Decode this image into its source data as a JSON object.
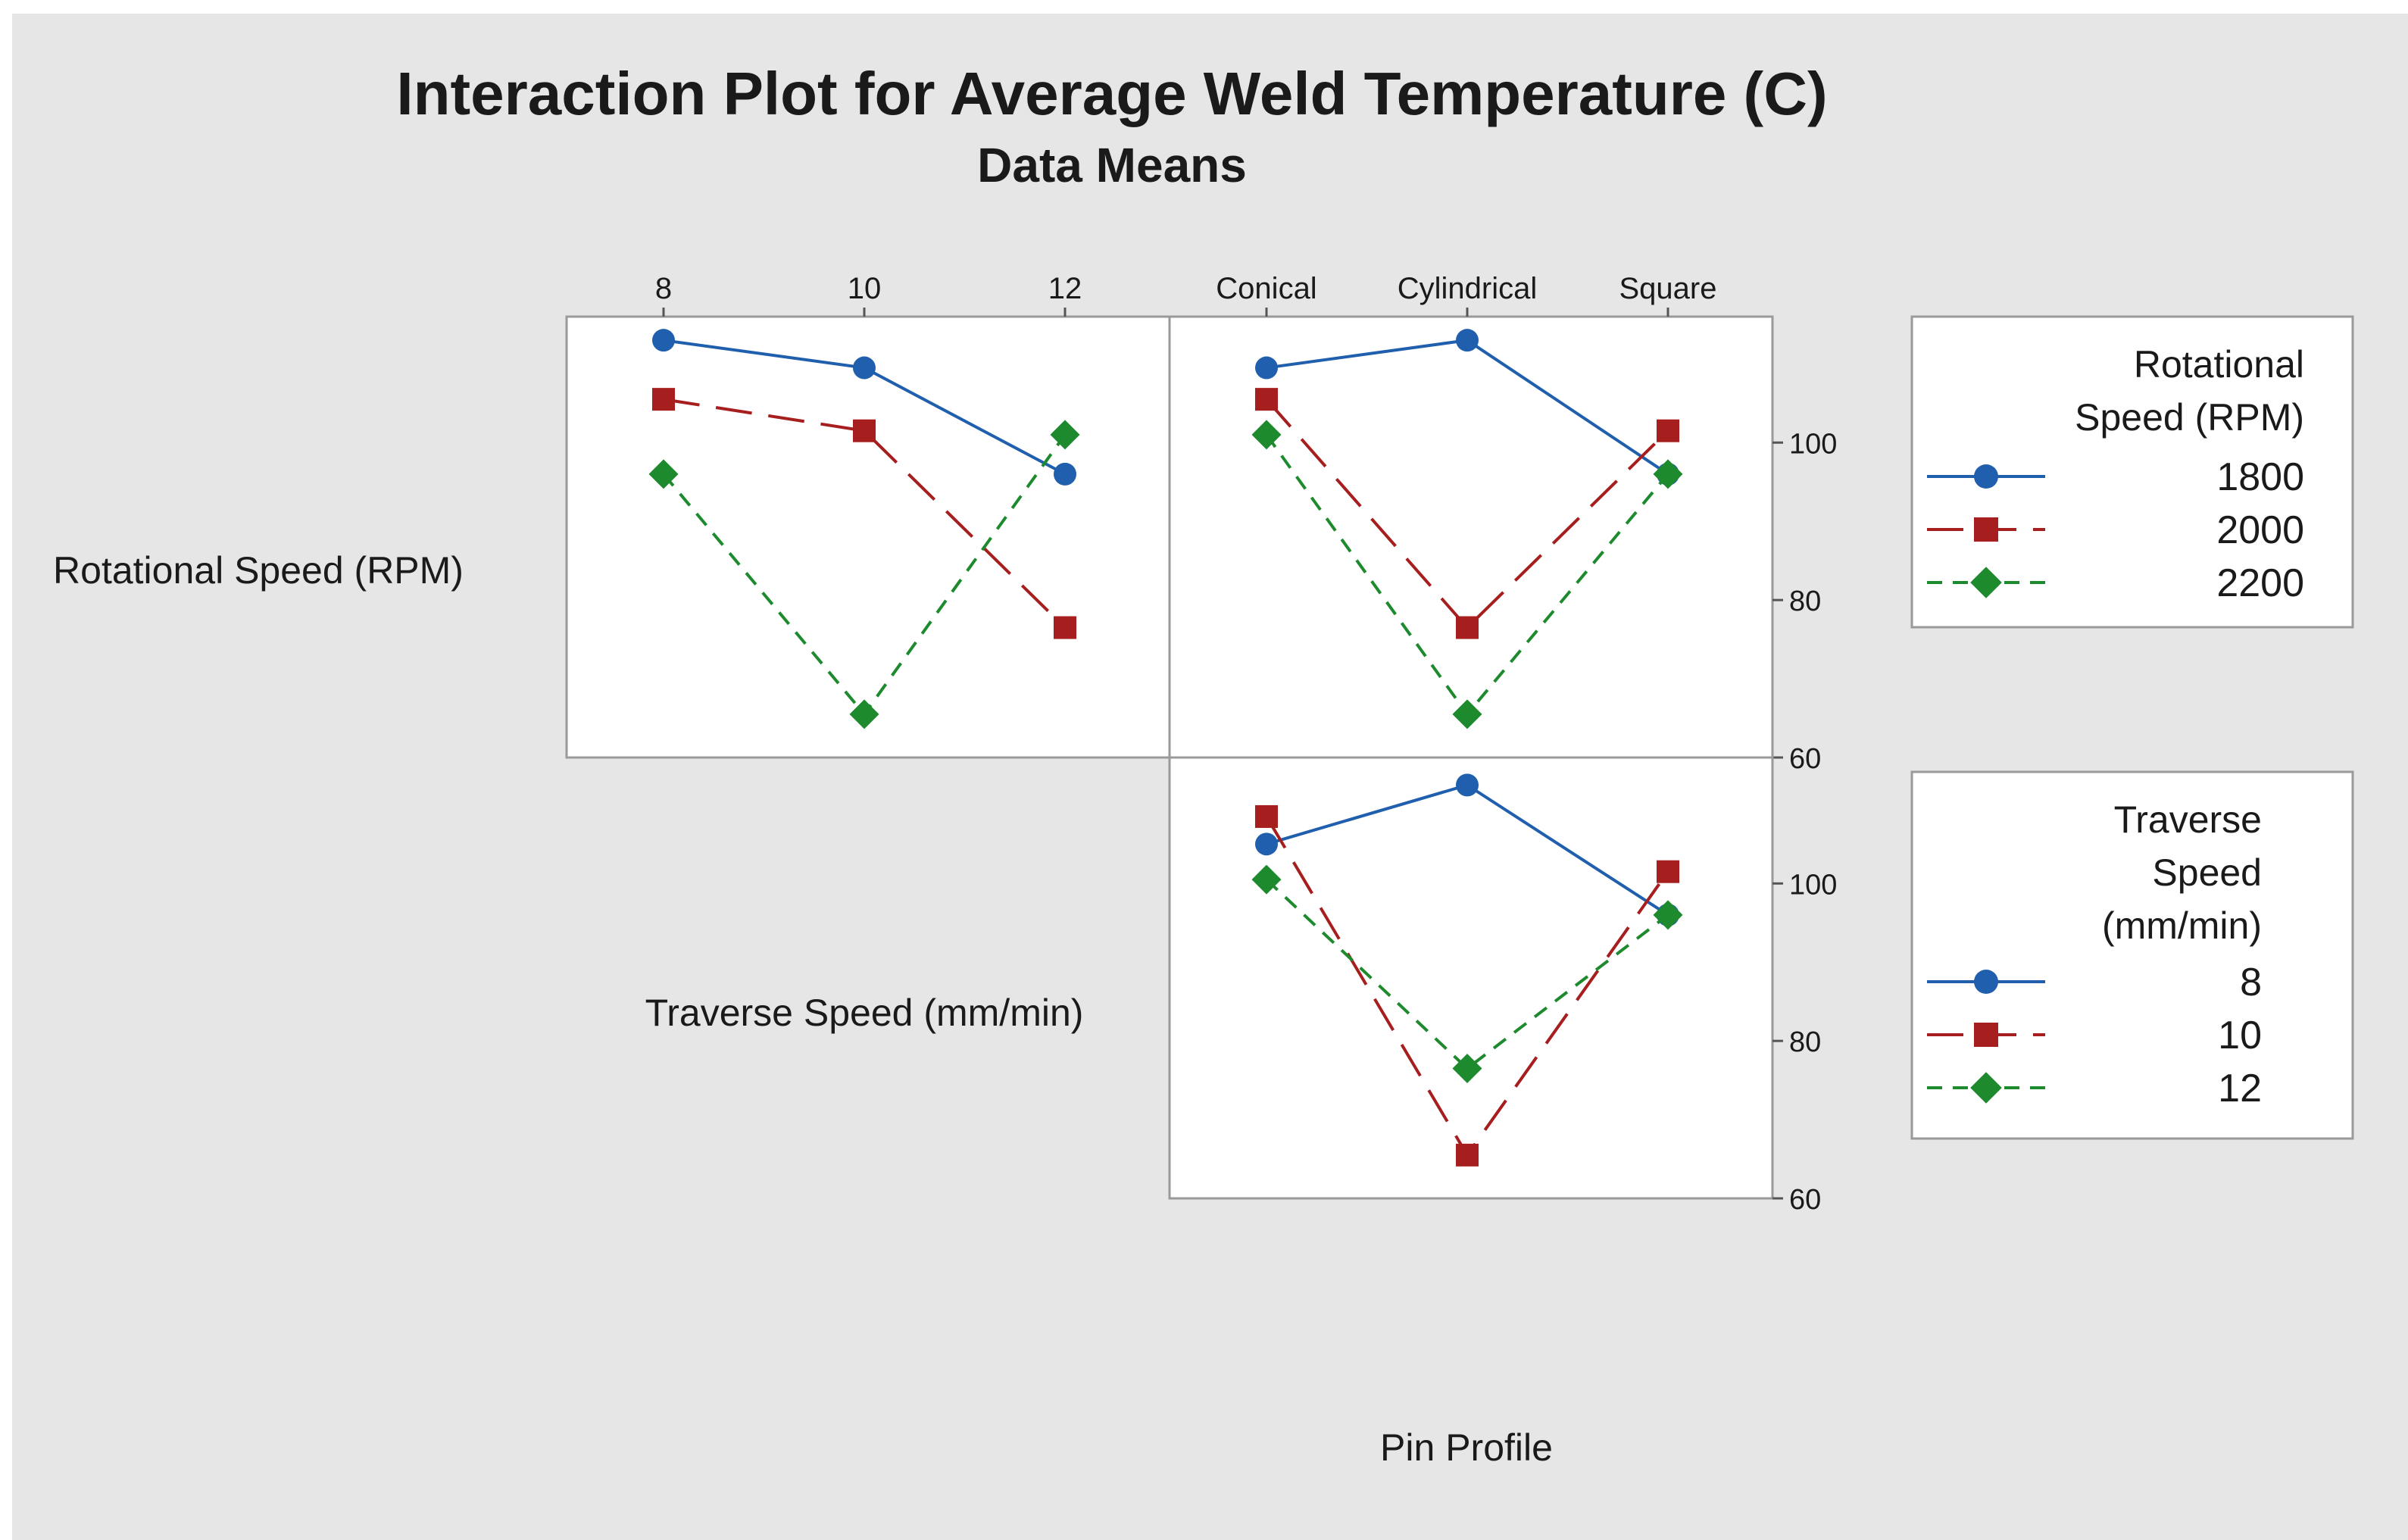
{
  "title": "Interaction Plot for Average Weld Temperature (C)",
  "subtitle": "Data Means",
  "row_labels": [
    "Rotational Speed (RPM)",
    "Traverse Speed (mm/min)"
  ],
  "x_axis_label": "Pin Profile",
  "legends": [
    {
      "title_lines": [
        "Rotational",
        "Speed (RPM)"
      ],
      "entries": [
        "1800",
        "2000",
        "2200"
      ]
    },
    {
      "title_lines": [
        "Traverse",
        "Speed",
        "(mm/min)"
      ],
      "entries": [
        "8",
        "10",
        "12"
      ]
    }
  ],
  "style": {
    "colors": [
      "#1f5fad",
      "#a61e1e",
      "#1e8a2e"
    ],
    "markers": [
      "circle",
      "square",
      "diamond"
    ],
    "line_styles": [
      "solid",
      "long-dash",
      "short-dash"
    ]
  },
  "chart_data": [
    {
      "type": "line",
      "panel": "top-left",
      "x_factor": "Traverse Speed (mm/min)",
      "trace_factor": "Rotational Speed (RPM)",
      "categories": [
        "8",
        "10",
        "12"
      ],
      "ylim": [
        60,
        116
      ],
      "y_ticks": [
        60,
        80,
        100
      ],
      "series": [
        {
          "name": "1800",
          "values": [
            113,
            109.5,
            96
          ]
        },
        {
          "name": "2000",
          "values": [
            105.5,
            101.5,
            76.5
          ]
        },
        {
          "name": "2200",
          "values": [
            96,
            65.5,
            101
          ]
        }
      ]
    },
    {
      "type": "line",
      "panel": "top-right",
      "x_factor": "Pin Profile",
      "trace_factor": "Rotational Speed (RPM)",
      "categories": [
        "Conical",
        "Cylindrical",
        "Square"
      ],
      "ylim": [
        60,
        116
      ],
      "y_ticks": [
        60,
        80,
        100
      ],
      "series": [
        {
          "name": "1800",
          "values": [
            109.5,
            113,
            96
          ]
        },
        {
          "name": "2000",
          "values": [
            105.5,
            76.5,
            101.5
          ]
        },
        {
          "name": "2200",
          "values": [
            101,
            65.5,
            96
          ]
        }
      ]
    },
    {
      "type": "line",
      "panel": "bottom-right",
      "x_factor": "Pin Profile",
      "trace_factor": "Traverse Speed (mm/min)",
      "categories": [
        "Conical",
        "Cylindrical",
        "Square"
      ],
      "ylim": [
        60,
        116
      ],
      "y_ticks": [
        60,
        80,
        100
      ],
      "series": [
        {
          "name": "8",
          "values": [
            105,
            112.5,
            96
          ]
        },
        {
          "name": "10",
          "values": [
            108.5,
            65.5,
            101.5
          ]
        },
        {
          "name": "12",
          "values": [
            100.5,
            76.5,
            96
          ]
        }
      ]
    }
  ]
}
